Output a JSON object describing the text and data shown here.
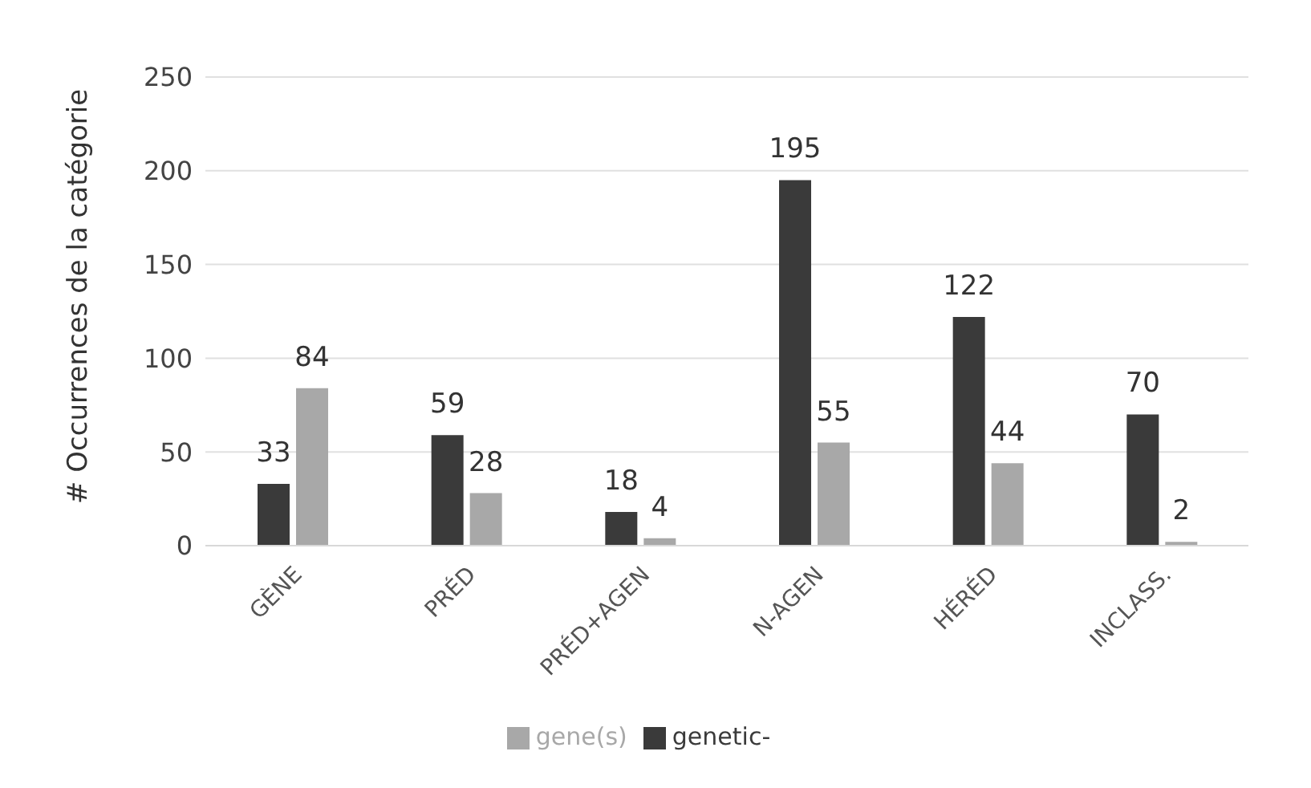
{
  "chart_data": {
    "type": "bar",
    "ylabel": "# Occurrences de la catégorie",
    "categories": [
      "GÈNE",
      "PRÉD",
      "PRÉD+AGEN",
      "N-AGEN",
      "HÉRÉD",
      "INCLASS."
    ],
    "series": [
      {
        "name": "genetic-",
        "color": "#3a3a3a",
        "values": [
          33,
          59,
          18,
          195,
          122,
          70
        ]
      },
      {
        "name": "gene(s)",
        "color": "#a8a8a8",
        "values": [
          84,
          28,
          4,
          55,
          44,
          2
        ]
      }
    ],
    "ylim": [
      0,
      250
    ],
    "yticks": [
      0,
      50,
      100,
      150,
      200,
      250
    ],
    "grid": "y",
    "legend": "bottom",
    "data_labels": true
  }
}
